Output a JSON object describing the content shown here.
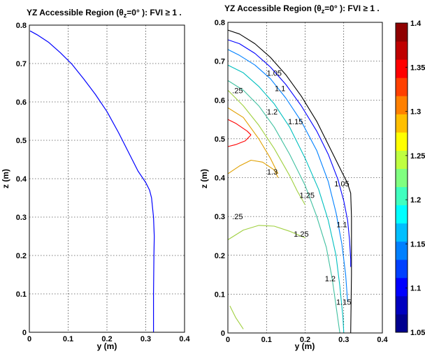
{
  "chart_data": [
    {
      "type": "line",
      "title_main": "YZ Accessible Region (",
      "title_theta": "θ",
      "title_sub": "z",
      "title_rest": "=0° ): FVI ≥ 1 .",
      "xlabel": "y (m)",
      "ylabel": "z (m)",
      "xlim": [
        0,
        0.4
      ],
      "ylim": [
        0,
        0.8
      ],
      "xticks": [
        "0",
        "0.1",
        "0.2",
        "0.3",
        "0.4"
      ],
      "yticks": [
        "0",
        "0.1",
        "0.2",
        "0.3",
        "0.4",
        "0.5",
        "0.6",
        "0.7",
        "0.8"
      ],
      "grid": true,
      "series": [
        {
          "color": "#0000ff",
          "x": [
            0.002,
            0.02,
            0.05,
            0.08,
            0.11,
            0.14,
            0.17,
            0.2,
            0.23,
            0.26,
            0.28,
            0.3,
            0.31,
            0.315,
            0.32,
            0.322,
            0.321,
            0.32,
            0.32,
            0.32
          ],
          "y": [
            0.785,
            0.775,
            0.755,
            0.728,
            0.698,
            0.66,
            0.62,
            0.575,
            0.52,
            0.46,
            0.42,
            0.39,
            0.37,
            0.35,
            0.3,
            0.25,
            0.2,
            0.1,
            0.05,
            0.0
          ]
        }
      ]
    },
    {
      "type": "contour",
      "title_main": "YZ Accessible Region (",
      "title_theta": "θ",
      "title_sub": "z",
      "title_rest": "=0° ): FVI ≥ 1 .",
      "xlabel": "y (m)",
      "ylabel": "z (m)",
      "xlim": [
        0,
        0.4
      ],
      "ylim": [
        0,
        0.8
      ],
      "xticks": [
        "0",
        "0.1",
        "0.2",
        "0.3",
        "0.4"
      ],
      "yticks": [
        "0",
        "0.1",
        "0.2",
        "0.3",
        "0.4",
        "0.5",
        "0.6",
        "0.7",
        "0.8"
      ],
      "grid": true,
      "colorbar": {
        "min": 1.05,
        "max": 1.4,
        "ticks": [
          "1.05",
          "1.1",
          "1.15",
          "1.2",
          "1.25",
          "1.3",
          "1.35",
          "1.4"
        ],
        "colors": [
          "#00008f",
          "#0000bf",
          "#0000ff",
          "#0040ff",
          "#0080ff",
          "#00bfff",
          "#00ffff",
          "#40ffbf",
          "#80ff80",
          "#bfff40",
          "#ffff00",
          "#ffbf00",
          "#ff8000",
          "#ff4000",
          "#ff0000",
          "#bf0000",
          "#8f0000"
        ]
      },
      "contours": [
        {
          "level": "1.0",
          "color": "#000000",
          "x": [
            0.0,
            0.03,
            0.07,
            0.11,
            0.15,
            0.19,
            0.23,
            0.265,
            0.295,
            0.31,
            0.318,
            0.32,
            0.32,
            0.318
          ],
          "y": [
            0.78,
            0.77,
            0.745,
            0.71,
            0.665,
            0.61,
            0.545,
            0.475,
            0.415,
            0.385,
            0.36,
            0.3,
            0.15,
            0.0
          ]
        },
        {
          "level": "1.05",
          "color": "#0000ff",
          "x": [
            0.0,
            0.03,
            0.07,
            0.11,
            0.15,
            0.19,
            0.23,
            0.26,
            0.285,
            0.3,
            0.31,
            0.315,
            0.318,
            0.318
          ],
          "y": [
            0.755,
            0.745,
            0.72,
            0.685,
            0.64,
            0.585,
            0.52,
            0.46,
            0.395,
            0.34,
            0.29,
            0.24,
            0.19,
            0.17
          ]
        },
        {
          "level": "1.1",
          "color": "#0080ff",
          "x": [
            0.0,
            0.03,
            0.07,
            0.11,
            0.15,
            0.19,
            0.23,
            0.26,
            0.28,
            0.295,
            0.305,
            0.31
          ],
          "y": [
            0.73,
            0.715,
            0.69,
            0.655,
            0.605,
            0.545,
            0.47,
            0.39,
            0.31,
            0.23,
            0.15,
            0.08
          ]
        },
        {
          "level": "1.15",
          "color": "#00bfbf",
          "x": [
            0.0,
            0.04,
            0.08,
            0.12,
            0.16,
            0.2,
            0.235,
            0.26,
            0.28,
            0.29,
            0.298,
            0.3
          ],
          "y": [
            0.69,
            0.67,
            0.635,
            0.59,
            0.53,
            0.45,
            0.37,
            0.29,
            0.2,
            0.12,
            0.04,
            0.0
          ]
        },
        {
          "level": "1.2",
          "color": "#40c0a0",
          "x": [
            0.0,
            0.04,
            0.08,
            0.12,
            0.16,
            0.2,
            0.23,
            0.255,
            0.27,
            0.28,
            0.287,
            0.29
          ],
          "y": [
            0.65,
            0.625,
            0.585,
            0.53,
            0.46,
            0.38,
            0.3,
            0.22,
            0.14,
            0.07,
            0.02,
            0.0
          ]
        },
        {
          "level": "1.25",
          "color": "#a0d040",
          "x": [
            0.0,
            0.04,
            0.08,
            0.12,
            0.16,
            0.2
          ],
          "y": [
            0.24,
            0.265,
            0.277,
            0.275,
            0.262,
            0.245
          ]
        },
        {
          "level": "1.25",
          "color": "#a0d040",
          "x": [
            0.0,
            0.04,
            0.08,
            0.12,
            0.16,
            0.18,
            0.2
          ],
          "y": [
            0.625,
            0.585,
            0.535,
            0.475,
            0.405,
            0.365,
            0.33
          ]
        },
        {
          "level": "1.25",
          "color": "#a0d040",
          "x": [
            0.005,
            0.02,
            0.04
          ],
          "y": [
            0.07,
            0.04,
            0.01
          ]
        },
        {
          "level": "1.3",
          "color": "#e0a000",
          "x": [
            0.0,
            0.03,
            0.06,
            0.09,
            0.12,
            0.13
          ],
          "y": [
            0.41,
            0.43,
            0.445,
            0.44,
            0.42,
            0.4
          ]
        },
        {
          "level": "1.3",
          "color": "#e0a000",
          "x": [
            0.0,
            0.04,
            0.08,
            0.11,
            0.13
          ],
          "y": [
            0.58,
            0.555,
            0.5,
            0.45,
            0.41
          ]
        },
        {
          "level": "1.35",
          "color": "#ff0000",
          "x": [
            0.0,
            0.02,
            0.045,
            0.06
          ],
          "y": [
            0.48,
            0.485,
            0.495,
            0.51
          ]
        },
        {
          "level": "1.35",
          "color": "#ff0000",
          "x": [
            0.0,
            0.02,
            0.05,
            0.06
          ],
          "y": [
            0.55,
            0.54,
            0.52,
            0.51
          ]
        }
      ],
      "labels": [
        {
          "text": "1.05",
          "x": 0.12,
          "y": 0.67
        },
        {
          "text": "1.1",
          "x": 0.135,
          "y": 0.63
        },
        {
          "text": "1.2",
          "x": 0.115,
          "y": 0.57
        },
        {
          "text": "1.15",
          "x": 0.175,
          "y": 0.545
        },
        {
          "text": ".25",
          "x": 0.025,
          "y": 0.625
        },
        {
          "text": "1.3",
          "x": 0.115,
          "y": 0.415
        },
        {
          "text": "1.05",
          "x": 0.295,
          "y": 0.385
        },
        {
          "text": "1.25",
          "x": 0.205,
          "y": 0.355
        },
        {
          "text": "1.25",
          "x": 0.19,
          "y": 0.255
        },
        {
          "text": ".25",
          "x": 0.025,
          "y": 0.3
        },
        {
          "text": "1.1",
          "x": 0.295,
          "y": 0.28
        },
        {
          "text": "1.2",
          "x": 0.265,
          "y": 0.14
        },
        {
          "text": "1.15",
          "x": 0.3,
          "y": 0.08
        }
      ]
    }
  ]
}
